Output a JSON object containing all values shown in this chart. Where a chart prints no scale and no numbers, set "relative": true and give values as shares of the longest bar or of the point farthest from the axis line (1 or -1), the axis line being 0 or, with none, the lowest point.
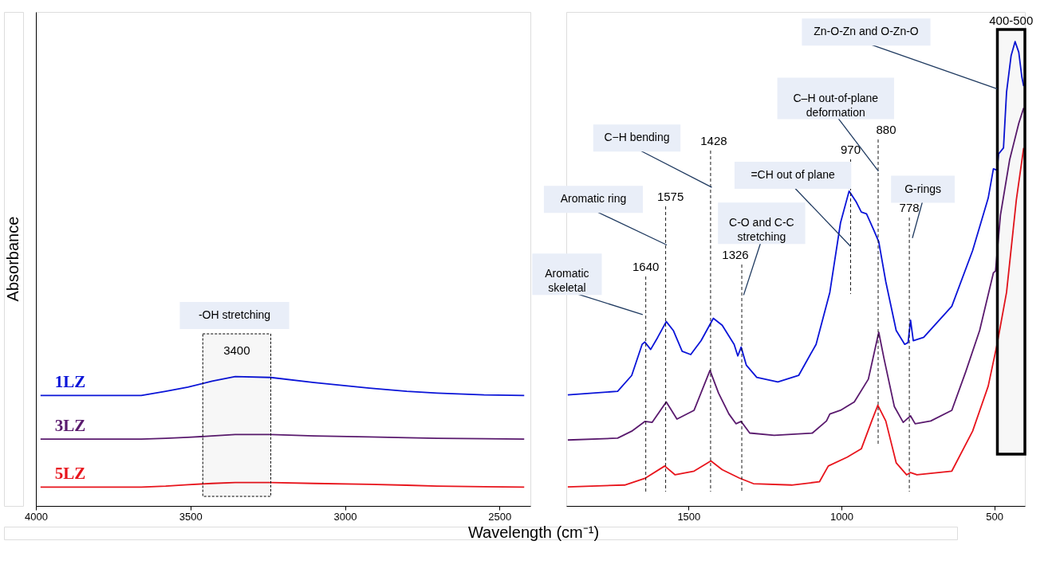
{
  "chart_data": [
    {
      "type": "line",
      "relative": true,
      "grid": false,
      "ylabel": "Absorbance",
      "xlabel": "Wavelength (cm⁻¹)",
      "xlim": [
        4000,
        2400
      ],
      "xticks": [
        4000,
        3500,
        3000,
        2500
      ],
      "series": [
        {
          "name": "1LZ",
          "color": "#0a14d8",
          "x": [
            3985,
            3800,
            3659,
            3580,
            3508,
            3430,
            3355,
            3240,
            3100,
            2921,
            2800,
            2702,
            2550,
            2420
          ],
          "values": [
            0.854,
            0.854,
            0.854,
            0.886,
            0.918,
            0.964,
            1.0,
            0.993,
            0.954,
            0.911,
            0.886,
            0.872,
            0.858,
            0.854
          ]
        },
        {
          "name": "3LZ",
          "color": "#5a1a6e",
          "x": [
            3985,
            3800,
            3659,
            3580,
            3508,
            3430,
            3355,
            3240,
            3100,
            2921,
            2800,
            2702,
            2550,
            2420
          ],
          "values": [
            0.516,
            0.516,
            0.516,
            0.523,
            0.53,
            0.541,
            0.552,
            0.552,
            0.541,
            0.534,
            0.527,
            0.523,
            0.52,
            0.516
          ]
        },
        {
          "name": "5LZ",
          "color": "#e8141c",
          "x": [
            3985,
            3800,
            3659,
            3580,
            3508,
            3430,
            3355,
            3240,
            3100,
            2921,
            2800,
            2702,
            2550,
            2420
          ],
          "values": [
            0.146,
            0.146,
            0.146,
            0.153,
            0.164,
            0.174,
            0.181,
            0.181,
            0.174,
            0.167,
            0.16,
            0.153,
            0.149,
            0.146
          ]
        }
      ],
      "bands": [
        {
          "axis": "x",
          "from": 3460,
          "to": 3240,
          "label": "3400"
        }
      ],
      "annotations": [
        "-OH stretching"
      ]
    },
    {
      "type": "line",
      "relative": true,
      "grid": false,
      "xlim": [
        1900,
        400
      ],
      "xticks": [
        1500,
        1000,
        500
      ],
      "series": [
        {
          "color": "#0a14d8",
          "x": [
            1895,
            1732,
            1686,
            1652,
            1643,
            1624,
            1601,
            1573,
            1550,
            1521,
            1493,
            1459,
            1419,
            1390,
            1351,
            1339,
            1328,
            1311,
            1277,
            1208,
            1140,
            1083,
            1038,
            1003,
            975,
            952,
            935,
            918,
            895,
            878,
            855,
            821,
            793,
            782,
            774,
            765,
            731,
            639,
            571,
            520,
            503,
            491,
            486,
            470,
            460,
            445,
            432,
            420,
            410,
            404
          ],
          "values": [
            0.239,
            0.247,
            0.281,
            0.348,
            0.353,
            0.337,
            0.363,
            0.397,
            0.378,
            0.333,
            0.326,
            0.356,
            0.404,
            0.389,
            0.348,
            0.323,
            0.342,
            0.303,
            0.277,
            0.267,
            0.281,
            0.348,
            0.46,
            0.61,
            0.678,
            0.655,
            0.633,
            0.629,
            0.595,
            0.569,
            0.483,
            0.378,
            0.348,
            0.352,
            0.4,
            0.356,
            0.363,
            0.43,
            0.55,
            0.663,
            0.726,
            0.723,
            0.758,
            0.771,
            0.891,
            0.97,
            1.0,
            0.977,
            0.924,
            0.904
          ]
        },
        {
          "color": "#5a1a6e",
          "x": [
            1895,
            1732,
            1686,
            1643,
            1619,
            1573,
            1538,
            1482,
            1430,
            1402,
            1368,
            1345,
            1328,
            1300,
            1220,
            1095,
            1049,
            1038,
            1003,
            958,
            912,
            878,
            861,
            827,
            798,
            774,
            759,
            708,
            639,
            594,
            548,
            503,
            496,
            480,
            450,
            420,
            404
          ],
          "values": [
            0.142,
            0.146,
            0.161,
            0.182,
            0.18,
            0.224,
            0.187,
            0.206,
            0.292,
            0.243,
            0.198,
            0.177,
            0.182,
            0.157,
            0.152,
            0.157,
            0.183,
            0.198,
            0.206,
            0.224,
            0.273,
            0.374,
            0.318,
            0.214,
            0.18,
            0.194,
            0.177,
            0.183,
            0.206,
            0.288,
            0.378,
            0.502,
            0.506,
            0.626,
            0.745,
            0.824,
            0.857
          ]
        },
        {
          "color": "#e8141c",
          "x": [
            1895,
            1709,
            1641,
            1578,
            1544,
            1482,
            1427,
            1390,
            1334,
            1288,
            1163,
            1072,
            1043,
            981,
            935,
            901,
            881,
            855,
            821,
            787,
            774,
            753,
            639,
            571,
            520,
            491,
            460,
            428,
            404
          ],
          "values": [
            0.041,
            0.045,
            0.06,
            0.086,
            0.067,
            0.075,
            0.097,
            0.078,
            0.06,
            0.048,
            0.045,
            0.052,
            0.086,
            0.105,
            0.123,
            0.183,
            0.217,
            0.183,
            0.093,
            0.067,
            0.072,
            0.067,
            0.075,
            0.161,
            0.258,
            0.348,
            0.46,
            0.659,
            0.771
          ]
        }
      ],
      "ref_lines": [
        {
          "axis": "x",
          "value": 1640,
          "label": "1640"
        },
        {
          "axis": "x",
          "value": 1575,
          "label": "1575"
        },
        {
          "axis": "x",
          "value": 1428,
          "label": "1428"
        },
        {
          "axis": "x",
          "value": 1326,
          "label": "1326"
        },
        {
          "axis": "x",
          "value": 970,
          "label": "970"
        },
        {
          "axis": "x",
          "value": 880,
          "label": "880"
        },
        {
          "axis": "x",
          "value": 778,
          "label": "778"
        }
      ],
      "annotations": [
        {
          "text": "Aromatic\nskeletal",
          "x": 1650,
          "y": 0.412
        },
        {
          "text": "Aromatic ring",
          "x": 1571,
          "y": 0.562
        },
        {
          "text": "C−H bending",
          "x": 1424,
          "y": 0.686
        },
        {
          "text": "C-O and C-C\nstretching",
          "x": 1320,
          "y": 0.454
        },
        {
          "text": "=CH out of plane",
          "x": 970,
          "y": 0.559
        },
        {
          "text": "C–H out-of-plane\ndeformation",
          "x": 879,
          "y": 0.721
        },
        {
          "text": "G-rings",
          "x": 768,
          "y": 0.577
        },
        {
          "text": "Zn-O-Zn and O-Zn-O",
          "x": 490,
          "y": 0.898
        }
      ],
      "bands": [
        {
          "axis": "x",
          "from": 490,
          "to": 400,
          "label": "400-500"
        }
      ]
    }
  ]
}
